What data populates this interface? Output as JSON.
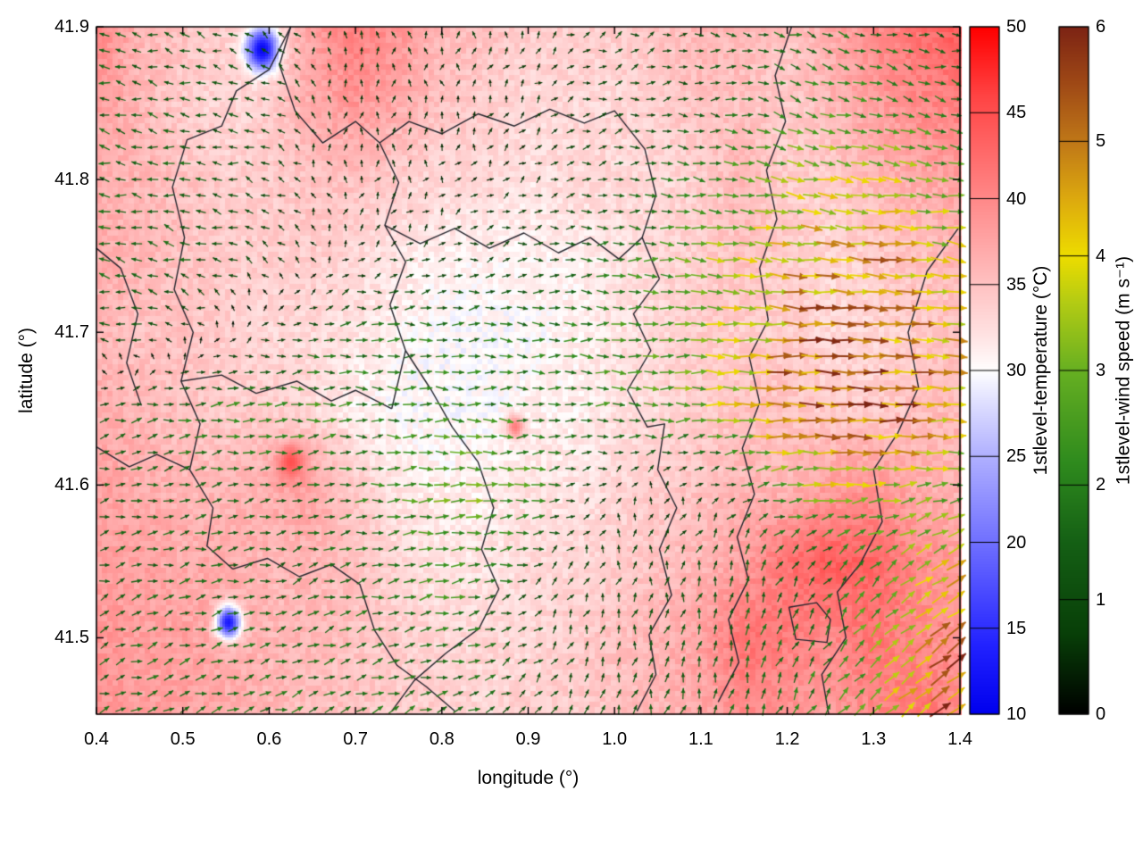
{
  "chart_data": {
    "type": "heatmap",
    "subtype": "heatmap+quiver",
    "title": "",
    "xlabel": "longitude (°)",
    "ylabel": "latitude (°)",
    "xlim": [
      0.4,
      1.4
    ],
    "ylim": [
      41.45,
      41.9
    ],
    "x_ticks": [
      "0.4",
      "0.5",
      "0.6",
      "0.7",
      "0.8",
      "0.9",
      "1.0",
      "1.1",
      "1.2",
      "1.3",
      "1.4"
    ],
    "y_ticks": [
      "41.5",
      "41.6",
      "41.7",
      "41.8",
      "41.9"
    ],
    "grid": {
      "lon0": 0.4,
      "dlon": 0.05,
      "nx": 21,
      "lat0": 41.9,
      "dlat": -0.05,
      "ny": 10
    },
    "temperature": [
      [
        41,
        36,
        35,
        34,
        33,
        38,
        41,
        39,
        36,
        35,
        34,
        34,
        34,
        35,
        36,
        36,
        35,
        37,
        40,
        42,
        44
      ],
      [
        38,
        36,
        34,
        33,
        34,
        37,
        39,
        37,
        35,
        34,
        33,
        33,
        33,
        34,
        35,
        35,
        34,
        36,
        38,
        40,
        41
      ],
      [
        37,
        36,
        35,
        34,
        34,
        35,
        35,
        34,
        33,
        33,
        32,
        33,
        33,
        33,
        34,
        36,
        34,
        34,
        36,
        37,
        38
      ],
      [
        37,
        36,
        35,
        34,
        34,
        34,
        33,
        32,
        31,
        31,
        31,
        31,
        32,
        33,
        34,
        35,
        34,
        33,
        34,
        35,
        36
      ],
      [
        36,
        35,
        35,
        34,
        33,
        33,
        32,
        31,
        30,
        30,
        30,
        31,
        32,
        33,
        34,
        34,
        34,
        33,
        33,
        34,
        35
      ],
      [
        37,
        36,
        35,
        34,
        34,
        33,
        31,
        30,
        30,
        30,
        31,
        31,
        32,
        33,
        34,
        35,
        35,
        34,
        34,
        35,
        36
      ],
      [
        38,
        37,
        36,
        36,
        37,
        38,
        34,
        32,
        31,
        31,
        32,
        32,
        33,
        34,
        35,
        36,
        36,
        38,
        39,
        37,
        36
      ],
      [
        38,
        38,
        37,
        37,
        36,
        36,
        35,
        33,
        32,
        32,
        33,
        33,
        34,
        35,
        36,
        38,
        42,
        44,
        43,
        40,
        38
      ],
      [
        39,
        38,
        38,
        37,
        36,
        36,
        35,
        34,
        33,
        33,
        33,
        34,
        35,
        36,
        38,
        42,
        41,
        40,
        42,
        40,
        39
      ],
      [
        39,
        38,
        38,
        37,
        36,
        35,
        35,
        34,
        34,
        33,
        34,
        34,
        35,
        36,
        37,
        40,
        39,
        38,
        40,
        42,
        40
      ]
    ],
    "wind_u": [
      [
        -1.2,
        -1.2,
        -1.2,
        -1.0,
        -0.8,
        -0.2,
        0,
        0,
        0,
        0,
        0.2,
        0.5,
        0.8,
        0.8,
        1.0,
        1.2,
        1.5,
        1.5,
        1.5,
        1.2,
        1.0
      ],
      [
        -1.4,
        -1.4,
        -1.3,
        -1.1,
        -0.8,
        -0.3,
        0,
        0,
        0,
        0.2,
        0.4,
        0.6,
        0.9,
        1.0,
        1.2,
        1.5,
        1.8,
        2.0,
        2.0,
        1.8,
        1.5
      ],
      [
        -1.5,
        -1.5,
        -1.4,
        -1.2,
        -0.8,
        -0.3,
        0.1,
        0.2,
        0.2,
        0.3,
        0.5,
        0.8,
        1.2,
        1.5,
        2.0,
        2.5,
        3.0,
        3.5,
        3.5,
        3.0,
        2.5
      ],
      [
        -1.5,
        -1.5,
        -1.4,
        -1.1,
        -0.7,
        -0.2,
        0.3,
        0.5,
        0.6,
        0.8,
        1.0,
        1.3,
        1.8,
        2.2,
        2.8,
        3.5,
        4.0,
        4.5,
        4.5,
        4.0,
        3.5
      ],
      [
        -1.2,
        -1.0,
        -0.6,
        0,
        0.6,
        1.2,
        1.6,
        1.8,
        1.8,
        1.8,
        1.8,
        2.0,
        2.2,
        2.5,
        3.0,
        3.8,
        4.5,
        5.0,
        5.0,
        4.5,
        4.0
      ],
      [
        1.0,
        1.5,
        1.8,
        2.0,
        2.2,
        2.2,
        2.0,
        2.0,
        2.0,
        2.0,
        2.0,
        2.0,
        2.2,
        2.5,
        3.0,
        4.0,
        5.0,
        5.5,
        5.5,
        5.0,
        4.5
      ],
      [
        1.2,
        1.4,
        1.5,
        1.5,
        1.5,
        1.5,
        1.8,
        2.2,
        2.8,
        3.0,
        2.5,
        1.0,
        0.3,
        0.2,
        0.5,
        1.5,
        2.5,
        3.5,
        3.5,
        3.0,
        2.5
      ],
      [
        1.2,
        1.3,
        1.4,
        1.4,
        1.4,
        1.4,
        1.6,
        2.0,
        2.5,
        2.2,
        1.2,
        0.4,
        0.2,
        0.2,
        0.3,
        0.5,
        0.8,
        1.0,
        1.5,
        2.5,
        3.5
      ],
      [
        1.3,
        1.4,
        1.5,
        1.5,
        1.5,
        1.5,
        1.5,
        1.6,
        1.8,
        1.5,
        0.8,
        0.4,
        0.3,
        0.3,
        0.3,
        0.4,
        0.6,
        1.0,
        2.0,
        3.0,
        4.0
      ],
      [
        1.4,
        1.5,
        1.6,
        1.6,
        1.6,
        1.6,
        1.6,
        1.6,
        1.6,
        1.4,
        0.9,
        0.5,
        0.4,
        0.4,
        0.4,
        0.5,
        0.8,
        1.5,
        2.5,
        3.5,
        4.5
      ]
    ],
    "wind_v": [
      [
        0.4,
        0.4,
        0.4,
        0.4,
        0.5,
        0.6,
        0.7,
        0.7,
        0.6,
        0.6,
        0.5,
        0.4,
        0.3,
        0.2,
        0,
        -0.3,
        -0.5,
        -0.5,
        -0.4,
        -0.3,
        -0.3
      ],
      [
        0.3,
        0.3,
        0.3,
        0.4,
        0.5,
        0.6,
        0.6,
        0.6,
        0.5,
        0.5,
        0.4,
        0.3,
        0.2,
        0.1,
        0,
        -0.3,
        -0.5,
        -0.6,
        -0.5,
        -0.4,
        -0.3
      ],
      [
        0.3,
        0.3,
        0.3,
        0.3,
        0.4,
        0.5,
        0.5,
        0.5,
        0.4,
        0.4,
        0.3,
        0.2,
        0.1,
        0,
        -0.2,
        -0.4,
        -0.5,
        -0.6,
        -0.6,
        -0.5,
        -0.4
      ],
      [
        0.4,
        0.4,
        0.4,
        0.4,
        0.4,
        0.4,
        0.3,
        0.3,
        0.3,
        0.2,
        0.2,
        0.1,
        0,
        -0.1,
        -0.2,
        -0.3,
        -0.4,
        -0.5,
        -0.5,
        -0.4,
        -0.4
      ],
      [
        0.3,
        0.3,
        0.3,
        0.2,
        0.2,
        0.1,
        0.1,
        0,
        0,
        0,
        0,
        0,
        0,
        0,
        -0.1,
        -0.2,
        -0.2,
        -0.3,
        -0.3,
        -0.3,
        -0.3
      ],
      [
        0.2,
        0.2,
        0.2,
        0.1,
        0.1,
        0.1,
        0,
        0,
        0,
        0,
        0,
        0,
        0,
        0,
        0,
        -0.1,
        -0.1,
        -0.2,
        -0.2,
        -0.2,
        -0.2
      ],
      [
        0.3,
        0.3,
        0.3,
        0.3,
        0.3,
        0.3,
        0.2,
        0.2,
        0.1,
        0.1,
        0.1,
        0.2,
        0.4,
        0.5,
        0.5,
        0.4,
        0.3,
        0.2,
        0.2,
        0.3,
        0.4
      ],
      [
        0.4,
        0.4,
        0.4,
        0.4,
        0.4,
        0.4,
        0.4,
        0.3,
        0.2,
        0.3,
        0.4,
        0.6,
        0.8,
        0.9,
        1.0,
        1.2,
        1.2,
        1.2,
        1.5,
        1.8,
        2.0
      ],
      [
        0.5,
        0.5,
        0.5,
        0.5,
        0.5,
        0.5,
        0.5,
        0.5,
        0.4,
        0.5,
        0.7,
        0.9,
        1.0,
        1.1,
        1.2,
        1.5,
        1.5,
        1.5,
        2.0,
        2.5,
        2.8
      ],
      [
        0.5,
        0.5,
        0.5,
        0.5,
        0.5,
        0.6,
        0.6,
        0.6,
        0.5,
        0.6,
        0.8,
        1.0,
        1.1,
        1.2,
        1.3,
        1.5,
        1.6,
        1.8,
        2.2,
        2.8,
        3.0
      ]
    ],
    "spots": [
      {
        "lon": 0.592,
        "lat": 41.885,
        "value": 11,
        "r": 0.018
      },
      {
        "lon": 0.553,
        "lat": 41.51,
        "value": 13,
        "r": 0.014
      },
      {
        "lon": 0.625,
        "lat": 41.615,
        "value": 45,
        "r": 0.015
      },
      {
        "lon": 0.885,
        "lat": 41.638,
        "value": 41,
        "r": 0.01
      }
    ],
    "boundaries": [
      [
        [
          0.625,
          41.9
        ],
        [
          0.6,
          41.872
        ],
        [
          0.562,
          41.858
        ],
        [
          0.545,
          41.835
        ],
        [
          0.505,
          41.826
        ],
        [
          0.488,
          41.795
        ],
        [
          0.502,
          41.762
        ],
        [
          0.49,
          41.728
        ],
        [
          0.512,
          41.7
        ],
        [
          0.498,
          41.668
        ],
        [
          0.52,
          41.64
        ],
        [
          0.508,
          41.61
        ],
        [
          0.535,
          41.585
        ],
        [
          0.528,
          41.56
        ],
        [
          0.558,
          41.545
        ]
      ],
      [
        [
          0.498,
          41.668
        ],
        [
          0.545,
          41.672
        ],
        [
          0.585,
          41.66
        ],
        [
          0.632,
          41.668
        ],
        [
          0.672,
          41.655
        ],
        [
          0.7,
          41.662
        ],
        [
          0.742,
          41.65
        ]
      ],
      [
        [
          0.742,
          41.65
        ],
        [
          0.758,
          41.688
        ],
        [
          0.74,
          41.718
        ],
        [
          0.758,
          41.746
        ],
        [
          0.734,
          41.77
        ],
        [
          0.75,
          41.798
        ],
        [
          0.728,
          41.824
        ],
        [
          0.7,
          41.838
        ],
        [
          0.662,
          41.824
        ],
        [
          0.63,
          41.845
        ],
        [
          0.612,
          41.875
        ],
        [
          0.625,
          41.9
        ]
      ],
      [
        [
          0.728,
          41.824
        ],
        [
          0.762,
          41.838
        ],
        [
          0.8,
          41.83
        ],
        [
          0.842,
          41.843
        ],
        [
          0.884,
          41.835
        ],
        [
          0.925,
          41.846
        ],
        [
          0.965,
          41.837
        ],
        [
          1.0,
          41.845
        ],
        [
          1.035,
          41.82
        ],
        [
          1.048,
          41.79
        ],
        [
          1.032,
          41.762
        ],
        [
          1.052,
          41.735
        ]
      ],
      [
        [
          0.758,
          41.688
        ],
        [
          0.788,
          41.662
        ],
        [
          0.812,
          41.638
        ],
        [
          0.842,
          41.615
        ],
        [
          0.86,
          41.585
        ],
        [
          0.846,
          41.558
        ],
        [
          0.866,
          41.532
        ],
        [
          0.843,
          41.506
        ],
        [
          0.805,
          41.49
        ],
        [
          0.768,
          41.472
        ],
        [
          0.742,
          41.452
        ]
      ],
      [
        [
          1.052,
          41.735
        ],
        [
          1.022,
          41.712
        ],
        [
          1.042,
          41.688
        ],
        [
          1.015,
          41.662
        ],
        [
          1.038,
          41.638
        ],
        [
          1.058,
          41.64
        ],
        [
          1.05,
          41.61
        ],
        [
          1.072,
          41.585
        ],
        [
          1.052,
          41.558
        ],
        [
          1.066,
          41.528
        ],
        [
          1.04,
          41.502
        ],
        [
          1.048,
          41.476
        ],
        [
          1.026,
          41.452
        ]
      ],
      [
        [
          1.205,
          41.9
        ],
        [
          1.186,
          41.868
        ],
        [
          1.198,
          41.838
        ],
        [
          1.176,
          41.806
        ],
        [
          1.188,
          41.774
        ],
        [
          1.168,
          41.742
        ],
        [
          1.178,
          41.708
        ],
        [
          1.156,
          41.684
        ],
        [
          1.168,
          41.654
        ],
        [
          1.148,
          41.624
        ],
        [
          1.162,
          41.594
        ],
        [
          1.142,
          41.566
        ],
        [
          1.155,
          41.538
        ],
        [
          1.132,
          41.512
        ],
        [
          1.144,
          41.484
        ],
        [
          1.12,
          41.458
        ]
      ],
      [
        [
          1.398,
          41.768
        ],
        [
          1.362,
          41.74
        ],
        [
          1.34,
          41.7
        ],
        [
          1.352,
          41.664
        ],
        [
          1.328,
          41.634
        ],
        [
          1.3,
          41.61
        ],
        [
          1.31,
          41.576
        ],
        [
          1.284,
          41.548
        ],
        [
          1.258,
          41.53
        ],
        [
          1.268,
          41.5
        ],
        [
          1.24,
          41.476
        ],
        [
          1.248,
          41.45
        ]
      ],
      [
        [
          0.558,
          41.545
        ],
        [
          0.598,
          41.552
        ],
        [
          0.635,
          41.54
        ],
        [
          0.672,
          41.548
        ],
        [
          0.705,
          41.535
        ],
        [
          0.722,
          41.505
        ],
        [
          0.748,
          41.482
        ],
        [
          0.782,
          41.468
        ],
        [
          0.815,
          41.452
        ]
      ],
      [
        [
          1.202,
          41.52
        ],
        [
          1.234,
          41.523
        ],
        [
          1.25,
          41.512
        ],
        [
          1.246,
          41.497
        ],
        [
          1.21,
          41.499
        ],
        [
          1.202,
          41.52
        ]
      ],
      [
        [
          0.4,
          41.755
        ],
        [
          0.428,
          41.742
        ],
        [
          0.448,
          41.712
        ],
        [
          0.435,
          41.68
        ],
        [
          0.452,
          41.652
        ]
      ],
      [
        [
          0.734,
          41.77
        ],
        [
          0.775,
          41.758
        ],
        [
          0.815,
          41.768
        ],
        [
          0.855,
          41.755
        ],
        [
          0.895,
          41.765
        ],
        [
          0.935,
          41.752
        ],
        [
          0.972,
          41.762
        ],
        [
          1.005,
          41.748
        ],
        [
          1.032,
          41.762
        ]
      ],
      [
        [
          0.4,
          41.625
        ],
        [
          0.438,
          41.612
        ],
        [
          0.47,
          41.62
        ],
        [
          0.508,
          41.61
        ]
      ]
    ],
    "colorbars": [
      {
        "label": "1stlevel-temperature (°C)",
        "min": 10,
        "max": 50,
        "ticks": [
          "10",
          "15",
          "20",
          "25",
          "30",
          "35",
          "40",
          "45",
          "50"
        ],
        "stops": [
          [
            10,
            "#0000ee"
          ],
          [
            14,
            "#2222ff"
          ],
          [
            20,
            "#7070ff"
          ],
          [
            25,
            "#b0b0ff"
          ],
          [
            28,
            "#ddddff"
          ],
          [
            30,
            "#ffffff"
          ],
          [
            32,
            "#ffe4e4"
          ],
          [
            35,
            "#ffc2c2"
          ],
          [
            38,
            "#ffa0a0"
          ],
          [
            42,
            "#ff7272"
          ],
          [
            46,
            "#ff4444"
          ],
          [
            50,
            "#ff0000"
          ]
        ]
      },
      {
        "label": "1stlevel-wind speed (m s⁻¹)",
        "min": 0,
        "max": 6,
        "ticks": [
          "0",
          "1",
          "2",
          "3",
          "4",
          "5",
          "6"
        ],
        "stops": [
          [
            0,
            "#000000"
          ],
          [
            0.7,
            "#083f08"
          ],
          [
            1.5,
            "#156015"
          ],
          [
            2.2,
            "#2f8b1e"
          ],
          [
            3.0,
            "#67b022"
          ],
          [
            3.6,
            "#b4cc14"
          ],
          [
            4.0,
            "#eedd00"
          ],
          [
            4.5,
            "#ddaa0f"
          ],
          [
            5.0,
            "#c07818"
          ],
          [
            5.5,
            "#a04a16"
          ],
          [
            6,
            "#7d2414"
          ]
        ]
      }
    ],
    "quiver": {
      "spacing_px": 18,
      "len_base": 6,
      "len_per_speed": 4,
      "len_max": 28
    },
    "boundary_color": "#26262e"
  }
}
